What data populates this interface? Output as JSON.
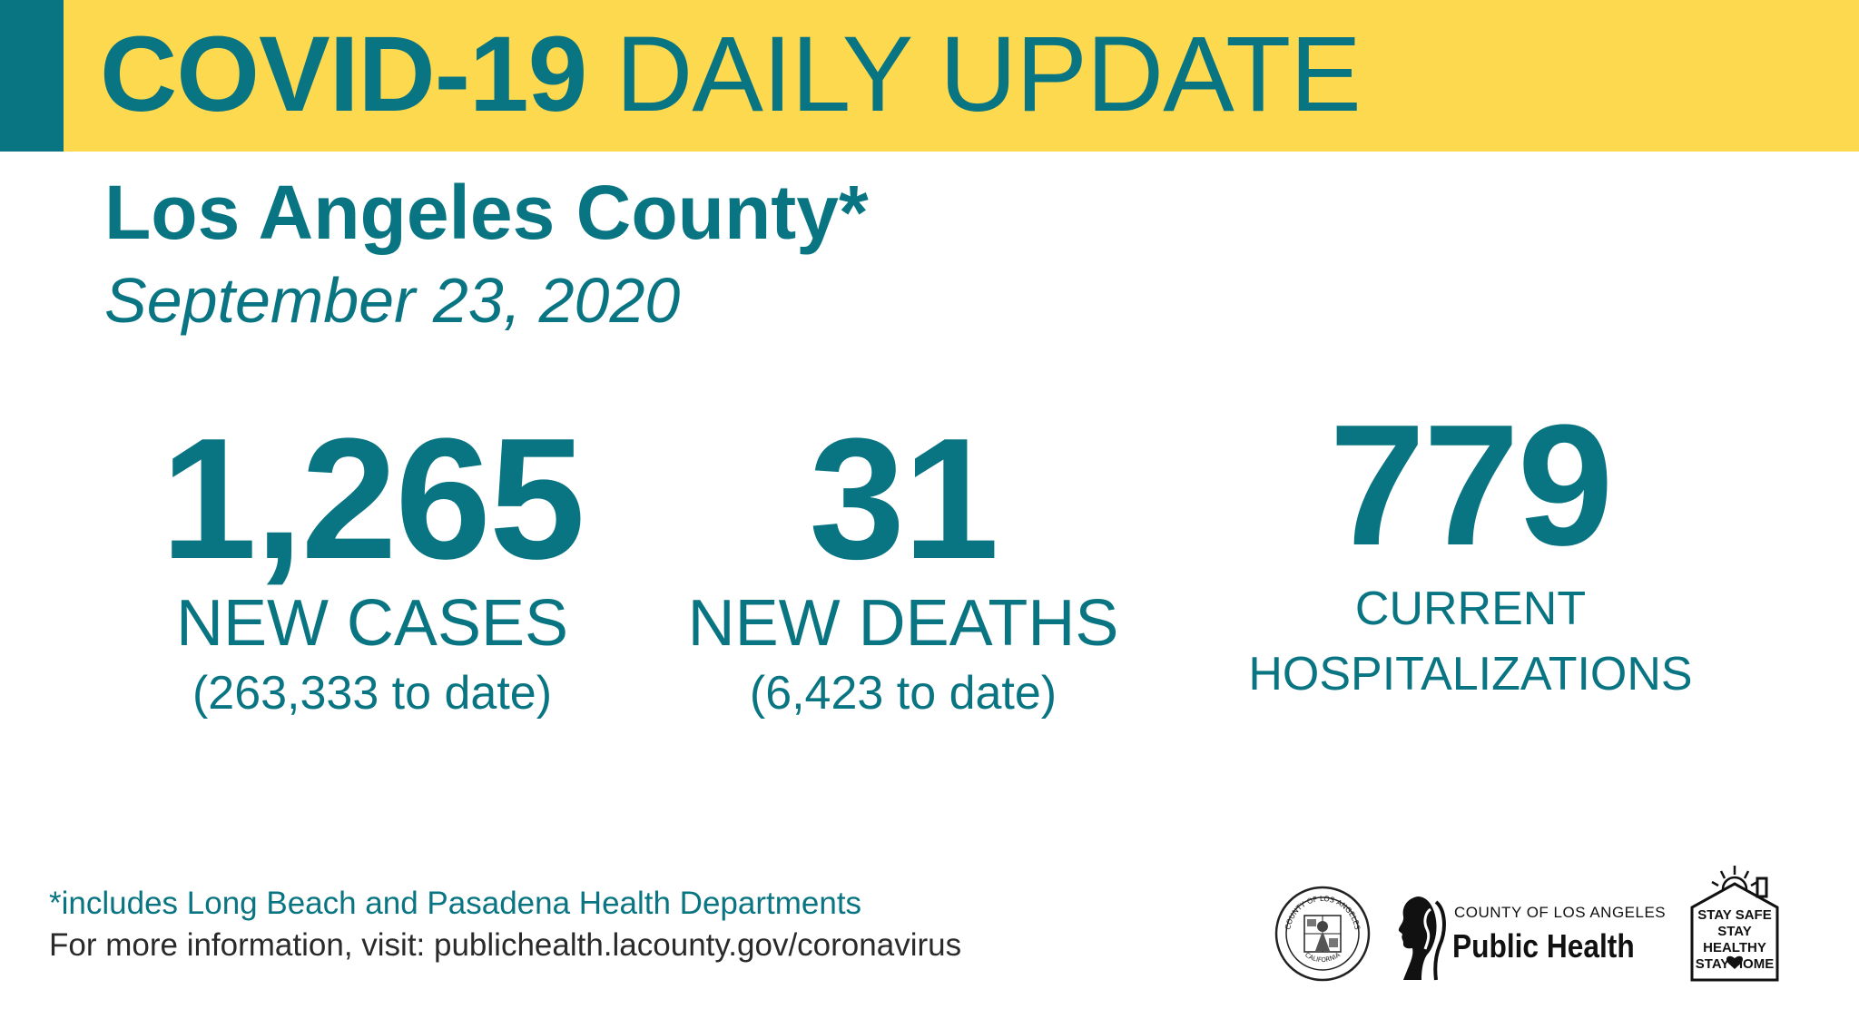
{
  "banner": {
    "title_bold": "COVID-19",
    "title_rest": "DAILY UPDATE",
    "colors": {
      "background": "#fdd94f",
      "accent": "#0a7582"
    }
  },
  "header": {
    "county": "Los Angeles County*",
    "date": "September 23, 2020"
  },
  "stats": {
    "cases": {
      "value": "1,265",
      "label": "NEW CASES",
      "to_date": "(263,333 to date)"
    },
    "deaths": {
      "value": "31",
      "label": "NEW DEATHS",
      "to_date": "(6,423 to date)"
    },
    "hospitalizations": {
      "value": "779",
      "label_line1": "CURRENT",
      "label_line2": "HOSPITALIZATIONS"
    }
  },
  "footer": {
    "note": "*includes Long Beach and Pasadena Health Departments",
    "info": "For more information, visit: publichealth.lacounty.gov/coronavirus"
  },
  "logos": {
    "seal": {
      "icon": "county-seal-icon",
      "text_top": "COUNTY OF LOS ANGELES",
      "text_bottom": "CALIFORNIA"
    },
    "public_health": {
      "icon": "public-health-silhouette-icon",
      "top": "COUNTY OF LOS ANGELES",
      "main": "Public Health"
    },
    "stay_safe": {
      "icon": "house-sun-icon",
      "line1": "STAY SAFE",
      "line2": "STAY HEALTHY",
      "line3": "STAY HOME"
    }
  }
}
